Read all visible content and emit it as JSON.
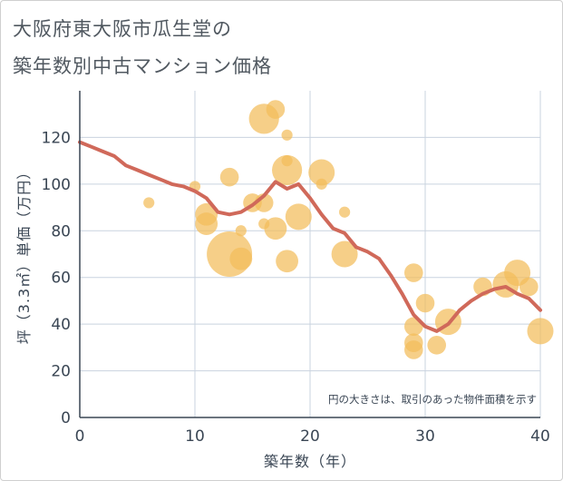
{
  "title_lines": [
    "大阪府東大阪市瓜生堂の",
    "築年数別中古マンション価格"
  ],
  "chart_data": {
    "type": "scatter",
    "title": "大阪府東大阪市瓜生堂の築年数別中古マンション価格",
    "xlabel": "築年数（年）",
    "ylabel": "坪（3.3㎡）単価（万円）",
    "xlim": [
      0,
      40
    ],
    "ylim": [
      0,
      140
    ],
    "xticks": [
      0,
      10,
      20,
      30,
      40
    ],
    "yticks": [
      0,
      20,
      40,
      60,
      80,
      100,
      120
    ],
    "grid": true,
    "annotation": "円の大きさは、取引のあった物件面積を示す",
    "colors": {
      "bubble": "#f2bc5a",
      "line": "#d0695a",
      "grid": "#c9d3df",
      "text": "#3a4654"
    },
    "bubbles": [
      {
        "x": 6,
        "y": 92,
        "size": 1
      },
      {
        "x": 10,
        "y": 99,
        "size": 1
      },
      {
        "x": 11,
        "y": 87,
        "size": 4
      },
      {
        "x": 11,
        "y": 83,
        "size": 4
      },
      {
        "x": 13,
        "y": 103,
        "size": 3
      },
      {
        "x": 13,
        "y": 70,
        "size": 10
      },
      {
        "x": 14,
        "y": 80,
        "size": 1
      },
      {
        "x": 14,
        "y": 68,
        "size": 4
      },
      {
        "x": 15,
        "y": 92,
        "size": 3
      },
      {
        "x": 16,
        "y": 128,
        "size": 6
      },
      {
        "x": 16,
        "y": 92,
        "size": 3
      },
      {
        "x": 16,
        "y": 83,
        "size": 1
      },
      {
        "x": 17,
        "y": 132,
        "size": 3
      },
      {
        "x": 17,
        "y": 81,
        "size": 4
      },
      {
        "x": 18,
        "y": 121,
        "size": 1
      },
      {
        "x": 18,
        "y": 110,
        "size": 1
      },
      {
        "x": 18,
        "y": 106,
        "size": 6
      },
      {
        "x": 18,
        "y": 67,
        "size": 4
      },
      {
        "x": 19,
        "y": 86,
        "size": 5
      },
      {
        "x": 21,
        "y": 105,
        "size": 5
      },
      {
        "x": 21,
        "y": 100,
        "size": 1
      },
      {
        "x": 23,
        "y": 88,
        "size": 1
      },
      {
        "x": 23,
        "y": 70,
        "size": 5
      },
      {
        "x": 29,
        "y": 62,
        "size": 3
      },
      {
        "x": 29,
        "y": 39,
        "size": 3
      },
      {
        "x": 29,
        "y": 32,
        "size": 3
      },
      {
        "x": 29,
        "y": 29,
        "size": 3
      },
      {
        "x": 30,
        "y": 49,
        "size": 3
      },
      {
        "x": 31,
        "y": 31,
        "size": 3
      },
      {
        "x": 32,
        "y": 41,
        "size": 5
      },
      {
        "x": 35,
        "y": 56,
        "size": 3
      },
      {
        "x": 37,
        "y": 57,
        "size": 5
      },
      {
        "x": 38,
        "y": 62,
        "size": 5
      },
      {
        "x": 39,
        "y": 56,
        "size": 3
      },
      {
        "x": 40,
        "y": 37,
        "size": 5
      }
    ],
    "trend": {
      "x": [
        0,
        1,
        2,
        3,
        4,
        5,
        6,
        7,
        8,
        9,
        10,
        11,
        12,
        13,
        14,
        15,
        16,
        17,
        18,
        19,
        20,
        21,
        22,
        23,
        24,
        25,
        26,
        27,
        28,
        29,
        30,
        31,
        32,
        33,
        34,
        35,
        36,
        37,
        38,
        39,
        40
      ],
      "y": [
        118,
        116,
        114,
        112,
        108,
        106,
        104,
        102,
        100,
        99,
        97,
        94,
        88,
        87,
        88,
        91,
        95,
        101,
        98,
        100,
        94,
        87,
        81,
        79,
        73,
        71,
        68,
        61,
        53,
        44,
        39,
        37,
        40,
        46,
        50,
        53,
        55,
        56,
        53,
        51,
        46
      ]
    }
  }
}
